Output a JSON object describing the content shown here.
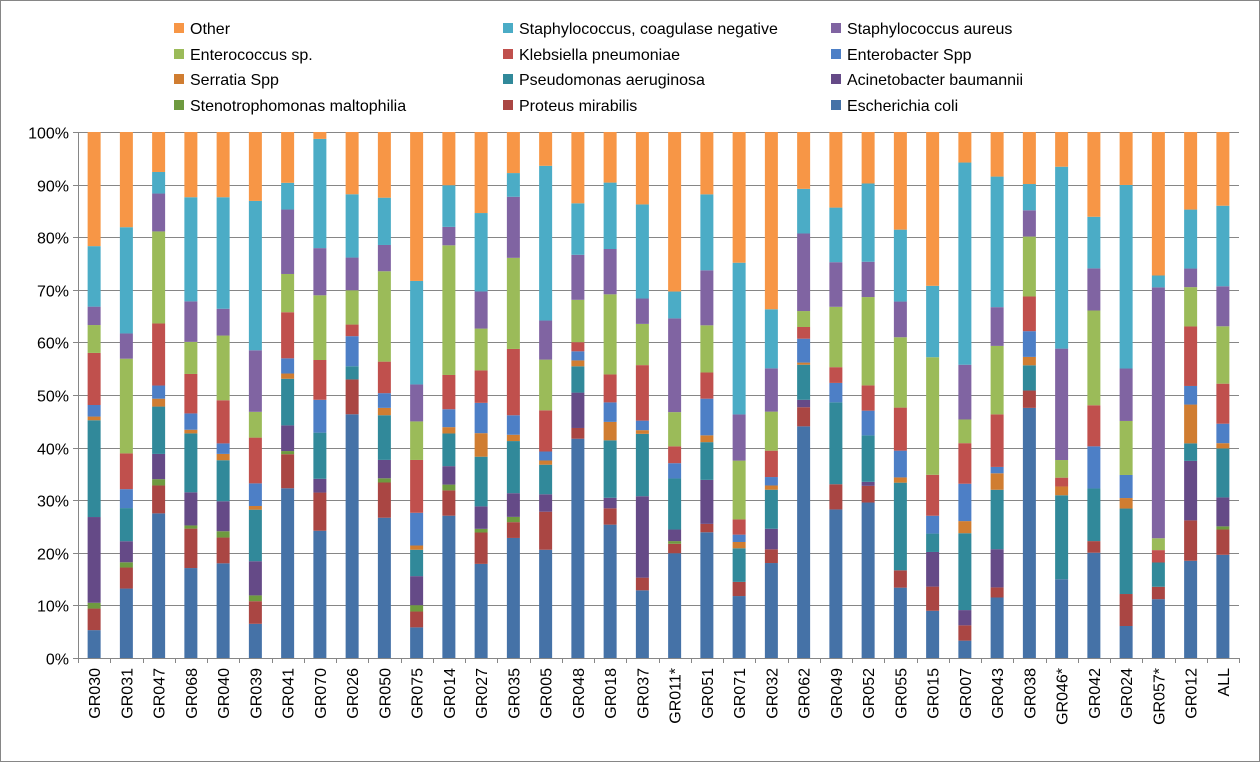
{
  "chart_data": {
    "type": "bar",
    "stacked": true,
    "normalized": true,
    "title": "",
    "xlabel": "",
    "ylabel": "",
    "ylim": [
      0,
      100
    ],
    "yticks": [
      "0%",
      "10%",
      "20%",
      "30%",
      "40%",
      "50%",
      "60%",
      "70%",
      "80%",
      "90%",
      "100%"
    ],
    "grid": true,
    "legend_position": "top",
    "categories": [
      "GR030",
      "GR031",
      "GR047",
      "GR068",
      "GR040",
      "GR039",
      "GR041",
      "GR070",
      "GR026",
      "GR050",
      "GR075",
      "GR014",
      "GR027",
      "GR035",
      "GR005",
      "GR048",
      "GR018",
      "GR037",
      "GR011*",
      "GR051",
      "GR071",
      "GR032",
      "GR062",
      "GR049",
      "GR052",
      "GR055",
      "GR015",
      "GR007",
      "GR043",
      "GR038",
      "GR046*",
      "GR042",
      "GR024",
      "GR057*",
      "GR012",
      "ALL"
    ],
    "series": [
      {
        "name": "Escherichia coli",
        "color": "#4572A7",
        "values": [
          5.3,
          13.2,
          27.5,
          17.1,
          18,
          6.5,
          32.4,
          24,
          46.2,
          26.7,
          5.8,
          27,
          18,
          22.8,
          20.5,
          40.9,
          25.3,
          12.8,
          19.9,
          24,
          11.8,
          18,
          43.6,
          28.3,
          30.8,
          13.4,
          9,
          3.3,
          11.4,
          47.6,
          15.2,
          20,
          6.1,
          11.4,
          18.3,
          19.6
        ]
      },
      {
        "name": "Proteus mirabilis",
        "color": "#AA4643",
        "values": [
          4.1,
          4,
          5.3,
          7.5,
          4.9,
          4.3,
          6.5,
          7.2,
          6.6,
          6.7,
          3,
          4.8,
          6,
          3,
          7.2,
          2,
          3.1,
          2.4,
          1.8,
          1.6,
          2.7,
          2.6,
          3.6,
          4.8,
          3.3,
          3.3,
          4.6,
          2.9,
          1.9,
          3.3,
          0,
          2.2,
          6.1,
          2.4,
          7.6,
          4.8
        ]
      },
      {
        "name": "Stenotrophomonas maltophilia",
        "color": "#6E9A3F",
        "values": [
          1.1,
          1,
          1.2,
          0.6,
          1.2,
          1.1,
          0.6,
          0,
          0,
          0.8,
          1.2,
          1.1,
          0.7,
          1,
          0,
          0,
          0,
          0,
          0.5,
          0,
          0,
          0,
          0,
          0,
          0,
          0,
          0,
          0,
          0,
          0,
          0,
          0,
          0,
          0,
          0,
          0.6
        ]
      },
      {
        "name": "Acinetobacter baumannii",
        "color": "#654A87",
        "values": [
          16.3,
          4,
          4.8,
          6.3,
          5.7,
          6.5,
          4.9,
          2.6,
          0,
          3.5,
          5.5,
          3.5,
          4.3,
          4.5,
          3.3,
          6.6,
          2,
          15.4,
          2.2,
          8.4,
          0,
          3.9,
          1.4,
          0,
          0.8,
          0,
          6.6,
          2.9,
          7.2,
          0,
          0,
          0,
          0,
          0,
          11.2,
          5.5
        ]
      },
      {
        "name": "Pseudomonas aeruginosa",
        "color": "#31899A",
        "values": [
          18.4,
          6.3,
          9,
          11.2,
          7.8,
          9.8,
          8.9,
          8.7,
          2.5,
          8.5,
          5,
          6.2,
          9.5,
          9.9,
          5.6,
          4.9,
          10.9,
          11.8,
          9.7,
          7.2,
          6.4,
          7.4,
          6.6,
          15.6,
          9.2,
          16.7,
          3.5,
          14.6,
          11.2,
          4.8,
          16.2,
          10,
          16.3,
          4.7,
          3.3,
          9.3
        ]
      },
      {
        "name": "Serratia Spp",
        "color": "#D07D31",
        "values": [
          0.7,
          0,
          1.5,
          0.7,
          1.2,
          0.7,
          1,
          0,
          0,
          1.4,
          0.8,
          1.2,
          4.5,
          1.2,
          0.8,
          1.1,
          3.5,
          0.7,
          0,
          1.3,
          1.2,
          0.8,
          0.4,
          0,
          0,
          1,
          0,
          2.3,
          3.1,
          1.6,
          1.7,
          0,
          2,
          0,
          7.3,
          1
        ]
      },
      {
        "name": "Enterobacter Spp",
        "color": "#4D7FC6",
        "values": [
          2.2,
          3.6,
          2.5,
          3.1,
          2,
          4.3,
          2.9,
          6.2,
          5.7,
          2.8,
          6.2,
          3.4,
          5.8,
          3.7,
          1.7,
          1.7,
          3.7,
          1.8,
          2.9,
          7,
          1.4,
          1.6,
          4.5,
          3.7,
          4.9,
          5.1,
          3.4,
          7.1,
          1.2,
          4.9,
          0,
          8,
          4.4,
          0,
          3.5,
          3.7
        ]
      },
      {
        "name": "Klebsiella pneumoniae",
        "color": "#C0504D",
        "values": [
          9.9,
          6.8,
          11.8,
          7.5,
          8.2,
          8.7,
          8.8,
          7.5,
          2.2,
          6,
          10,
          6.5,
          6.2,
          12.6,
          7.8,
          1.7,
          5.3,
          10.5,
          3.2,
          5,
          2.9,
          5,
          2.2,
          3,
          5,
          8.2,
          7.8,
          7.7,
          9.9,
          6.6,
          1.7,
          7.8,
          0,
          2.4,
          11.2,
          7.6
        ]
      },
      {
        "name": "Enterococcus sp.",
        "color": "#9BBB59",
        "values": [
          5.3,
          18,
          17.5,
          6.1,
          12.3,
          4.9,
          7.3,
          12.2,
          6.5,
          17.2,
          7.3,
          24.6,
          8,
          17.3,
          9.6,
          7.9,
          15.2,
          7.8,
          6.5,
          9,
          11.2,
          7.4,
          3,
          11.5,
          17.5,
          13.4,
          22.4,
          4.5,
          12.9,
          11.4,
          3.4,
          18,
          10.3,
          2.3,
          7.4,
          10.9
        ]
      },
      {
        "name": "Staphylococcus aureus",
        "color": "#8064A2",
        "values": [
          3.5,
          4.8,
          7.2,
          7.7,
          5.1,
          11.7,
          12.3,
          8.9,
          6.2,
          5,
          7,
          3.5,
          7.1,
          11.6,
          7.4,
          8.4,
          8.6,
          4.8,
          17.8,
          10.5,
          8.8,
          8.2,
          14.6,
          8.5,
          7,
          6.8,
          0,
          10.4,
          7.3,
          5,
          21.5,
          8,
          10,
          48.6,
          3.5,
          7.6
        ]
      },
      {
        "name": "Staphylococcus, coagulase negative",
        "color": "#4BACC6",
        "values": [
          11.5,
          20.2,
          4.1,
          19.8,
          21.2,
          28.4,
          5.1,
          20.6,
          12,
          9,
          19.6,
          7.9,
          15,
          4.5,
          29.3,
          9.6,
          12.6,
          17.8,
          5.1,
          14.5,
          28.9,
          11.2,
          8.4,
          10.4,
          15.5,
          13.7,
          13.6,
          38.4,
          24.6,
          5,
          35.1,
          9.8,
          35,
          2.3,
          11.1,
          15.3
        ]
      },
      {
        "name": "Other",
        "color": "#F79646",
        "values": [
          21.7,
          18.1,
          7.6,
          12.4,
          12.4,
          13.1,
          9.7,
          1.3,
          11.8,
          12.5,
          28.2,
          10.1,
          15.5,
          7.8,
          6.4,
          13.3,
          9.6,
          13.7,
          30.3,
          11.9,
          24.9,
          33.6,
          10.7,
          14.4,
          10.2,
          18.6,
          29.3,
          5.8,
          8.4,
          9.9,
          6.7,
          16.1,
          10.1,
          27.8,
          14.6,
          14
        ]
      }
    ],
    "legend_rows": [
      [
        "Other",
        "Staphylococcus, coagulase negative",
        "Staphylococcus aureus"
      ],
      [
        "Enterococcus sp.",
        "Klebsiella pneumoniae",
        "Enterobacter Spp"
      ],
      [
        "Serratia Spp",
        "Pseudomonas aeruginosa",
        "Acinetobacter baumannii"
      ],
      [
        "Stenotrophomonas maltophilia",
        "Proteus mirabilis",
        "Escherichia coli"
      ]
    ]
  }
}
